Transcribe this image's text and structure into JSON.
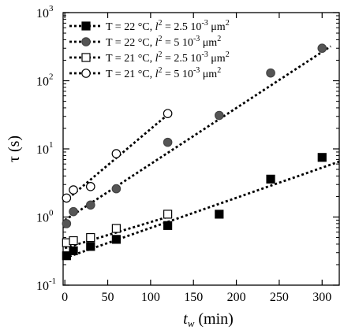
{
  "chart_data": {
    "type": "scatter",
    "title": "",
    "xlabel": "t_w (min)",
    "xlabel_main": "t",
    "xlabel_sub": "w",
    "xlabel_unit": " (min)",
    "ylabel": "τ (s)",
    "xlim": [
      -2,
      320
    ],
    "ylim": [
      0.1,
      1000
    ],
    "yscale": "log",
    "grid": false,
    "legend_position": "top-left",
    "x_ticks": [
      0,
      50,
      100,
      150,
      200,
      250,
      300
    ],
    "x_tick_labels": [
      "0",
      "50",
      "100",
      "150",
      "200",
      "250",
      "300"
    ],
    "y_ticks": [
      {
        "value": 0.1,
        "base": "10",
        "exp": "-1"
      },
      {
        "value": 1,
        "base": "10",
        "exp": "0"
      },
      {
        "value": 10,
        "base": "10",
        "exp": "1"
      },
      {
        "value": 100,
        "base": "10",
        "exp": "2"
      },
      {
        "value": 1000,
        "base": "10",
        "exp": "3"
      }
    ],
    "series": [
      {
        "name": "T = 22 °C, l² = 2.5 10⁻³ μm²",
        "legend": {
          "t": "T = 22 °C,  ",
          "l": "l",
          "l_sup": "2",
          "eq": " = 2.5 10",
          "exp": "-3",
          "unit": " μm",
          "unit_sup": "2"
        },
        "marker": "square-filled",
        "points": [
          [
            2,
            0.27
          ],
          [
            10,
            0.32
          ],
          [
            30,
            0.37
          ],
          [
            60,
            0.47
          ],
          [
            120,
            0.75
          ],
          [
            180,
            1.1
          ],
          [
            240,
            3.6
          ],
          [
            300,
            7.5
          ]
        ],
        "fit": [
          [
            0,
            0.25
          ],
          [
            320,
            6.5
          ]
        ]
      },
      {
        "name": "T = 22 °C, l² = 5 10⁻³ μm²",
        "legend": {
          "t": "T = 22 °C,  ",
          "l": "l",
          "l_sup": "2",
          "eq": " = 5 10",
          "exp": "-3",
          "unit": " μm",
          "unit_sup": "2"
        },
        "marker": "circle-filled",
        "points": [
          [
            2,
            0.8
          ],
          [
            10,
            1.2
          ],
          [
            30,
            1.5
          ],
          [
            60,
            2.6
          ],
          [
            120,
            12.5
          ],
          [
            180,
            31
          ],
          [
            240,
            130
          ],
          [
            300,
            300
          ]
        ],
        "fit": [
          [
            0,
            0.9
          ],
          [
            310,
            320
          ]
        ]
      },
      {
        "name": "T = 21 °C, l² = 2.5 10⁻³ μm²",
        "legend": {
          "t": "T = 21 °C,  ",
          "l": "l",
          "l_sup": "2",
          "eq": " = 2.5 10",
          "exp": "-3",
          "unit": " μm",
          "unit_sup": "2"
        },
        "marker": "square-open",
        "points": [
          [
            2,
            0.42
          ],
          [
            10,
            0.45
          ],
          [
            30,
            0.5
          ],
          [
            60,
            0.68
          ],
          [
            120,
            1.1
          ]
        ],
        "fit": [
          [
            0,
            0.35
          ],
          [
            125,
            1.05
          ]
        ]
      },
      {
        "name": "T = 21 °C, l² = 5 10⁻³ μm²",
        "legend": {
          "t": "T = 21 °C,  ",
          "l": "l",
          "l_sup": "2",
          "eq": " = 5 10",
          "exp": "-3",
          "unit": " μm",
          "unit_sup": "2"
        },
        "marker": "circle-open",
        "points": [
          [
            2,
            1.9
          ],
          [
            10,
            2.5
          ],
          [
            30,
            2.8
          ],
          [
            60,
            8.5
          ],
          [
            120,
            33
          ]
        ],
        "fit": [
          [
            0,
            1.7
          ],
          [
            125,
            36
          ]
        ]
      }
    ]
  }
}
